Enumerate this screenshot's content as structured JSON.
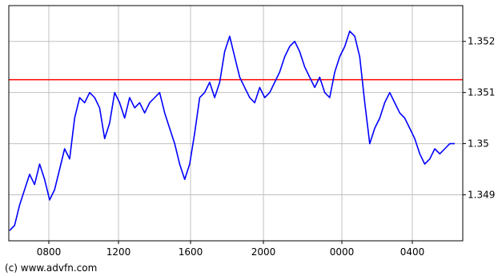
{
  "chart_data": {
    "type": "line",
    "title": "",
    "xlabel": "",
    "ylabel": "",
    "x_ticks": [
      "0800",
      "1200",
      "1600",
      "2000",
      "0000",
      "0400"
    ],
    "y_ticks": [
      1.349,
      1.35,
      1.351,
      1.352
    ],
    "ylim": [
      1.3481,
      1.3527
    ],
    "grid": true,
    "reference_line": {
      "value": 1.35125,
      "color": "#ff0000"
    },
    "series": [
      {
        "color": "#0000ff",
        "values": [
          1.3483,
          1.3484,
          1.3488,
          1.3491,
          1.3494,
          1.3492,
          1.3496,
          1.3493,
          1.3489,
          1.3491,
          1.3495,
          1.3499,
          1.3497,
          1.3505,
          1.3509,
          1.3508,
          1.351,
          1.3509,
          1.3507,
          1.3501,
          1.3504,
          1.351,
          1.3508,
          1.3505,
          1.3509,
          1.3507,
          1.3508,
          1.3506,
          1.3508,
          1.3509,
          1.351,
          1.3506,
          1.3503,
          1.35,
          1.3496,
          1.3493,
          1.3496,
          1.3502,
          1.3509,
          1.351,
          1.3512,
          1.3509,
          1.3512,
          1.3518,
          1.3521,
          1.3517,
          1.3513,
          1.3511,
          1.3509,
          1.3508,
          1.3511,
          1.3509,
          1.351,
          1.3512,
          1.3514,
          1.3517,
          1.3519,
          1.352,
          1.3518,
          1.3515,
          1.3513,
          1.3511,
          1.3513,
          1.351,
          1.3509,
          1.3514,
          1.3517,
          1.3519,
          1.3522,
          1.3521,
          1.3517,
          1.3508,
          1.35,
          1.3503,
          1.3505,
          1.3508,
          1.351,
          1.3508,
          1.3506,
          1.3505,
          1.3503,
          1.3501,
          1.3498,
          1.3496,
          1.3497,
          1.3499,
          1.3498,
          1.3499,
          1.35,
          1.35
        ]
      }
    ]
  },
  "credit": "(c) www.advfn.com"
}
